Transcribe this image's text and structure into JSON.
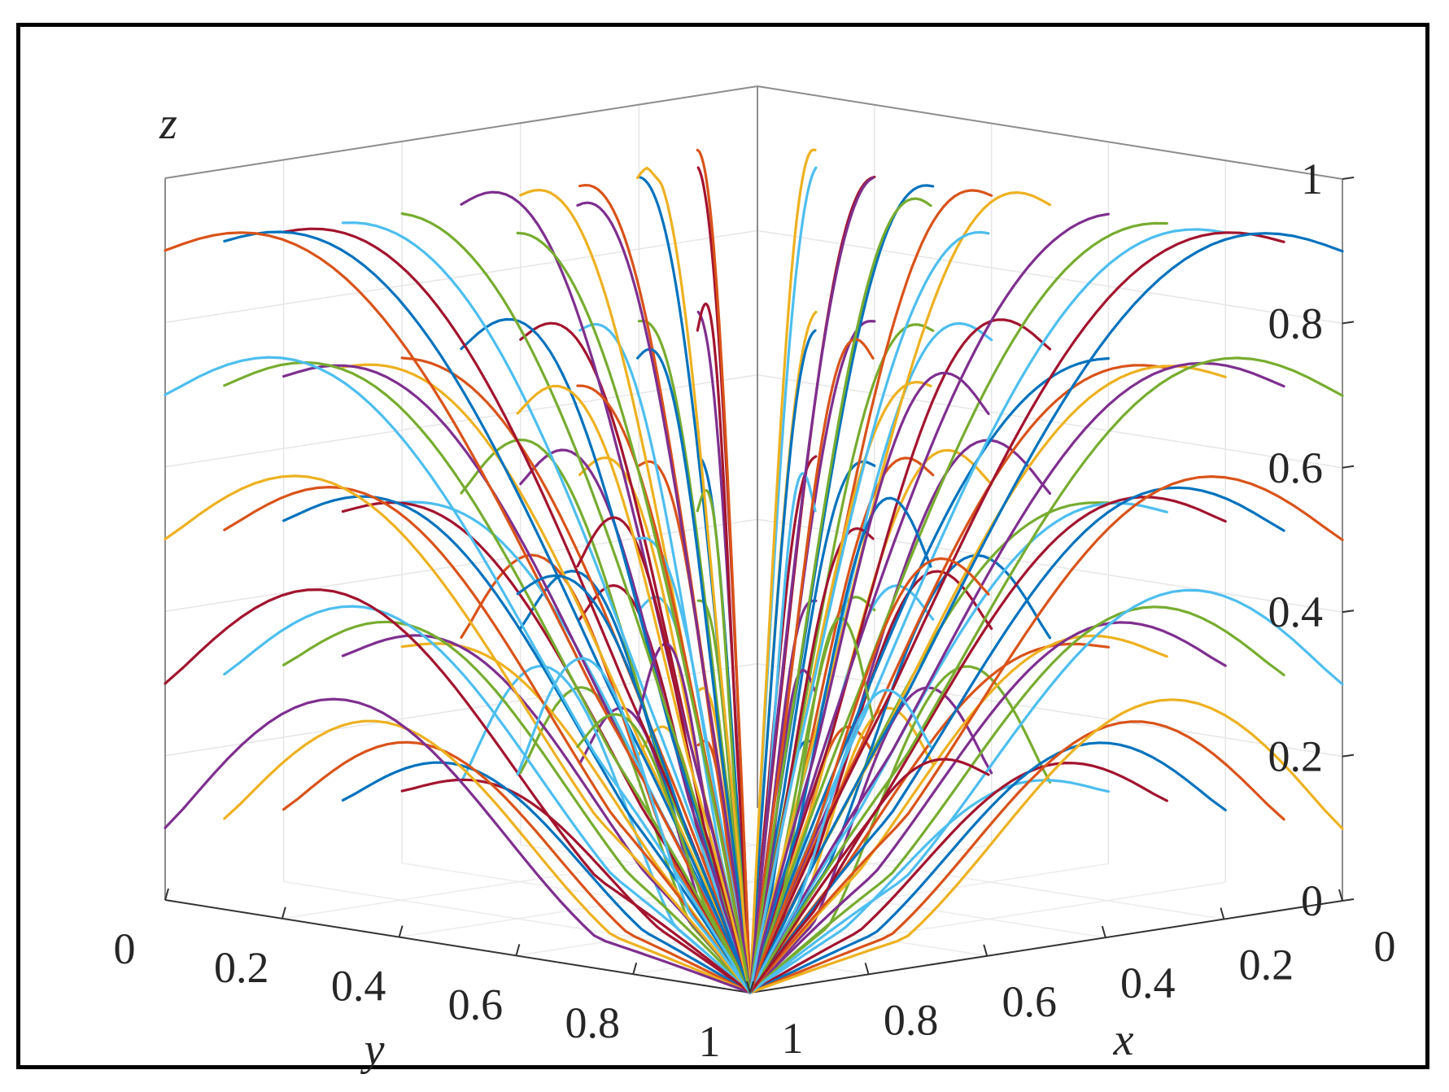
{
  "chart_data": {
    "type": "line",
    "projection": "3d",
    "title": "",
    "xlabel": "x",
    "ylabel": "y",
    "zlabel": "z",
    "xlim": [
      0,
      1
    ],
    "ylim": [
      0,
      1
    ],
    "zlim": [
      0,
      1
    ],
    "x_ticks": [
      "0",
      "0.2",
      "0.4",
      "0.6",
      "0.8",
      "1"
    ],
    "y_ticks": [
      "0",
      "0.2",
      "0.4",
      "0.6",
      "0.8",
      "1"
    ],
    "z_ticks": [
      "0",
      "0.2",
      "0.4",
      "0.6",
      "0.8",
      "1"
    ],
    "grid": true,
    "legend": "none",
    "converges_to": {
      "x": 1,
      "y": 1,
      "z": 0
    },
    "colors": [
      "#0072BD",
      "#D95319",
      "#EDB120",
      "#7E2F8E",
      "#77AC30",
      "#4DBEEE",
      "#A2142F"
    ],
    "trajectory_grid": {
      "start_face_x0": {
        "y_starts": [
          0.1,
          0.2,
          0.3,
          0.4,
          0.5,
          0.6,
          0.7,
          0.8,
          0.9,
          1.0
        ],
        "z_starts": [
          0.1,
          0.3,
          0.5,
          0.7,
          0.9
        ]
      },
      "start_face_y0": {
        "x_starts": [
          0.1,
          0.2,
          0.3,
          0.4,
          0.5,
          0.6,
          0.7,
          0.8,
          0.9,
          1.0
        ],
        "z_starts": [
          0.1,
          0.3,
          0.5,
          0.7,
          0.9
        ]
      }
    }
  }
}
